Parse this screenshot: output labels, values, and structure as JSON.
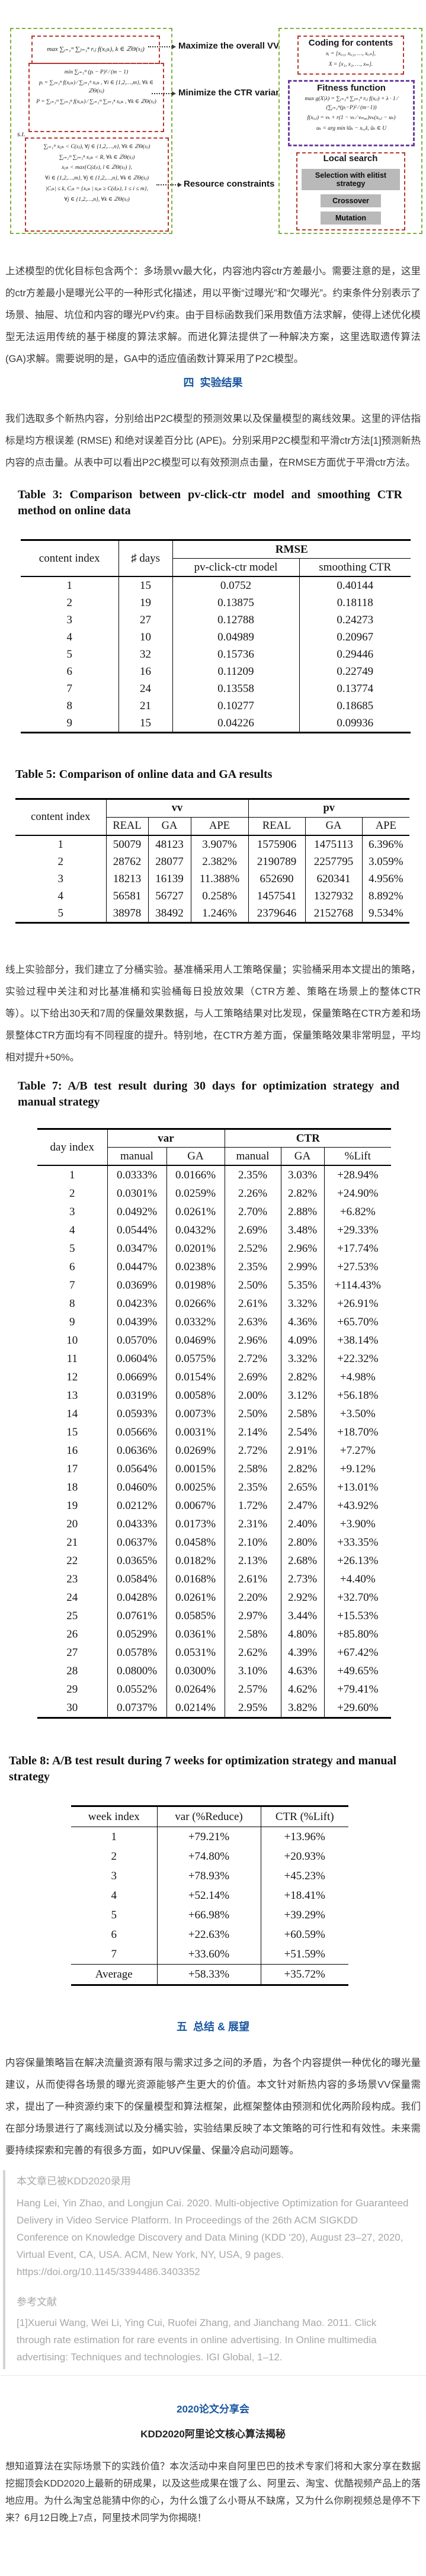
{
  "colors": {
    "heading_blue": "#1a57a0",
    "green_dash": "#7eb13e",
    "red_dash": "#b6372e",
    "purple_dash": "#6b3fa0",
    "button_gray": "#b9b9b9",
    "quote_gray": "#a8a8a8"
  },
  "figure": {
    "left": {
      "objective_max": "max ∑ᵢ₌₁ᵐ ∑ⱼ₌₁ⁿ rᵢⱼ f(xᵢⱼₖ), k ∈ ℤΘ(sⱼ)",
      "variance_lines": [
        "min  ∑ᵢ₌₁ᵐ (pᵢ − P)² ⁄ (m − 1)",
        "pᵢ = ∑ⱼ₌₁ⁿ f(xᵢⱼₖ) ⁄ ∑ⱼ₌₁ⁿ xᵢⱼₖ , ∀i ∈ {1,2,…,m}, ∀k ∈ ℤΘ(sⱼ)",
        "P = ∑ᵢ₌₁ᵐ ∑ⱼ₌₁ⁿ f(xᵢⱼₖ) ⁄ ∑ᵢ₌₁ᵐ ∑ⱼ₌₁ⁿ xᵢⱼₖ , ∀k ∈ ℤΘ(sⱼ)"
      ],
      "st": "s.t.",
      "constraint_lines": [
        "∑ᵢ₌₁ᵐ xᵢⱼₖ < C(sⱼ), ∀j ∈ {1,2,…,n}, ∀k ∈ ℤΘ(sⱼ)",
        "∑ᵢ₌₁ᵐ ∑ⱼ₌₁ⁿ xᵢⱼₖ < R, ∀k ∈ ℤΘ(sⱼ)",
        "xᵢⱼₖ < max{C(dⱼₗ), l ∈ ℤΘ(sⱼ) },",
        "∀i ∈ {1,2,…,m}, ∀j ∈ {1,2,…,n}, ∀k ∈ ℤΘ(sⱼ)",
        "|Cⱼₖ| ≤ k, Cⱼₖ = {xᵢⱼₖ | xᵢⱼₖ ≥ C(dⱼₖ), 1 ≤ i ≤ m},",
        "∀j ∈ {1,2,…,n}, ∀k ∈ ℤΘ(sⱼ)"
      ]
    },
    "labels": {
      "maximize": "Maximize the overall VVs",
      "minimize": "Minimize the CTR variance",
      "resource": "Resource constraints"
    },
    "right": {
      "coding_title": "Coding for contents",
      "coding_lines": [
        "xᵢ = [xᵢ,₁, xᵢ,₂, …, xᵢ,ₙ],",
        "X = [x₁, x₂, …, xₘ]."
      ],
      "fitness_title": "Fitness function",
      "fitness_lines": [
        "max g(X|λ) = ∑ᵢ₌₁ᵐ ∑ⱼ₌₁ⁿ rᵢⱼ f(xᵢⱼ) + λ · 1 ⁄ (∑ᵢ₌₁ᵐ(pᵢ−P)² ⁄ (m−1))",
        "f(xᵢ,ⱼ) = vₖ + r(1 − vₖ ⁄ vₘₐₓ)vₖ(xᵢ,ⱼ − uₖ)",
        "uₖ = arg min ‖ũₖ − xᵢ,ⱼ‖, ũₖ ∈ U"
      ],
      "local_title": "Local search",
      "local_buttons": [
        "Selection with elitist strategy",
        "Crossover",
        "Mutation"
      ]
    }
  },
  "headings": {
    "section4": "四  实验结果",
    "section5": "五  总结 & 展望",
    "share_title": "2020论文分享会",
    "share_subtitle": "KDD2020阿里论文核心算法揭秘"
  },
  "paragraphs": {
    "p1": "上述模型的优化目标包含两个：多场景vv最大化，内容池内容ctr方差最小。需要注意的是，这里的ctr方差最小是曝光公平的一种形式化描述，用以平衡“过曝光”和“欠曝光”。约束条件分别表示了场景、抽屉、坑位和内容的曝光PV约束。由于目标函数我们采用数值方法求解，使得上述优化模型无法运用传统的基于梯度的算法求解。而进化算法提供了一种解决方案，这里选取遗传算法(GA)求解。需要说明的是，GA中的适应值函数计算采用了P2C模型。",
    "p2": "我们选取多个新热内容，分别给出P2C模型的预测效果以及保量模型的离线效果。这里的评估指标是均方根误差 (RMSE) 和绝对误差百分比 (APE)。分别采用P2C模型和平滑ctr方法[1]预测新热内容的点击量。从表中可以看出P2C模型可以有效预测点击量，在RMSE方面优于平滑ctr方法。",
    "p3": "线上实验部分，我们建立了分桶实验。基准桶采用人工策略保量；实验桶采用本文提出的策略，实验过程中关注和对比基准桶和实验桶每日投放效果（CTR方差、策略在场景上的整体CTR等）。以下给出30天和7周的保量效果数据，与人工策略结果对比发现，保量策略在CTR方差和场景整体CTR方面均有不同程度的提升。特别地，在CTR方差方面，保量策略效果非常明显，平均相对提升+50%。",
    "p4": "内容保量策略旨在解决流量资源有限与需求过多之间的矛盾，为各个内容提供一种优化的曝光量建议，从而使得各场景的曝光资源能够产生更大的价值。本文针对新热内容的多场景VV保量需求，提出了一种资源约束下的保量模型和算法框架，此框架整体由预测和优化两阶段构成。我们在部分场景进行了离线测试以及分桶实验，实验结果反映了本文策略的可行性和有效性。未来需要持续探索和完善的有很多方面，如PUV保量、保量冷启动问题等。",
    "footer": "想知道算法在实际场景下的实践价值？本次活动中来自阿里巴巴的技术专家们将和大家分享在数据挖掘顶会KDD2020上最新的研成果，以及这些成果在饿了么、阿里云、淘宝、优酷视频产品上的落地应用。为什么淘宝总能猜中你的心，为什么饿了么小哥从不缺席，又为什么你刷视频总是停不下来？6月12日晚上7点，阿里技术同学为你揭晓！"
  },
  "tables": {
    "table3": {
      "caption": "Table 3: Comparison between pv-click-ctr model and smoothing CTR method on online data",
      "col1": "content index",
      "col2": "♯ days",
      "group": "RMSE",
      "sub1": "pv-click-ctr model",
      "sub2": "smoothing CTR",
      "rows": [
        [
          "1",
          "15",
          "0.0752",
          "0.40144"
        ],
        [
          "2",
          "19",
          "0.13875",
          "0.18118"
        ],
        [
          "3",
          "27",
          "0.12788",
          "0.24273"
        ],
        [
          "4",
          "10",
          "0.04989",
          "0.20967"
        ],
        [
          "5",
          "32",
          "0.15736",
          "0.29446"
        ],
        [
          "6",
          "16",
          "0.11209",
          "0.22749"
        ],
        [
          "7",
          "24",
          "0.13558",
          "0.13774"
        ],
        [
          "8",
          "21",
          "0.10277",
          "0.18685"
        ],
        [
          "9",
          "15",
          "0.04226",
          "0.09936"
        ]
      ]
    },
    "table5": {
      "caption": "Table 5: Comparison of online data and GA results",
      "col1": "content index",
      "group1": "vv",
      "group2": "pv",
      "subs": [
        "REAL",
        "GA",
        "APE",
        "REAL",
        "GA",
        "APE"
      ],
      "rows": [
        [
          "1",
          "50079",
          "48123",
          "3.907%",
          "1575906",
          "1475113",
          "6.396%"
        ],
        [
          "2",
          "28762",
          "28077",
          "2.382%",
          "2190789",
          "2257795",
          "3.059%"
        ],
        [
          "3",
          "18213",
          "16139",
          "11.388%",
          "652690",
          "620341",
          "4.956%"
        ],
        [
          "4",
          "56581",
          "56727",
          "0.258%",
          "1457541",
          "1327932",
          "8.892%"
        ],
        [
          "5",
          "38978",
          "38492",
          "1.246%",
          "2379646",
          "2152768",
          "9.534%"
        ]
      ]
    },
    "table7": {
      "caption": "Table 7: A/B test result during 30 days for optimization strategy and manual strategy",
      "col1": "day index",
      "group1": "var",
      "group2": "CTR",
      "subs": [
        "manual",
        "GA",
        "manual",
        "GA",
        "%Lift"
      ],
      "rows": [
        [
          "1",
          "0.0333%",
          "0.0166%",
          "2.35%",
          "3.03%",
          "+28.94%"
        ],
        [
          "2",
          "0.0301%",
          "0.0259%",
          "2.26%",
          "2.82%",
          "+24.90%"
        ],
        [
          "3",
          "0.0492%",
          "0.0261%",
          "2.70%",
          "2.88%",
          "+6.82%"
        ],
        [
          "4",
          "0.0544%",
          "0.0432%",
          "2.69%",
          "3.48%",
          "+29.33%"
        ],
        [
          "5",
          "0.0347%",
          "0.0201%",
          "2.52%",
          "2.96%",
          "+17.74%"
        ],
        [
          "6",
          "0.0447%",
          "0.0238%",
          "2.35%",
          "2.99%",
          "+27.53%"
        ],
        [
          "7",
          "0.0369%",
          "0.0198%",
          "2.50%",
          "5.35%",
          "+114.43%"
        ],
        [
          "8",
          "0.0423%",
          "0.0266%",
          "2.61%",
          "3.32%",
          "+26.91%"
        ],
        [
          "9",
          "0.0439%",
          "0.0332%",
          "2.63%",
          "4.36%",
          "+65.70%"
        ],
        [
          "10",
          "0.0570%",
          "0.0469%",
          "2.96%",
          "4.09%",
          "+38.14%"
        ],
        [
          "11",
          "0.0604%",
          "0.0575%",
          "2.72%",
          "3.32%",
          "+22.32%"
        ],
        [
          "12",
          "0.0669%",
          "0.0154%",
          "2.69%",
          "2.82%",
          "+4.98%"
        ],
        [
          "13",
          "0.0319%",
          "0.0058%",
          "2.00%",
          "3.12%",
          "+56.18%"
        ],
        [
          "14",
          "0.0593%",
          "0.0073%",
          "2.50%",
          "2.58%",
          "+3.50%"
        ],
        [
          "15",
          "0.0566%",
          "0.0031%",
          "2.14%",
          "2.54%",
          "+18.70%"
        ],
        [
          "16",
          "0.0636%",
          "0.0269%",
          "2.72%",
          "2.91%",
          "+7.27%"
        ],
        [
          "17",
          "0.0564%",
          "0.0015%",
          "2.58%",
          "2.82%",
          "+9.12%"
        ],
        [
          "18",
          "0.0460%",
          "0.0025%",
          "2.35%",
          "2.65%",
          "+13.01%"
        ],
        [
          "19",
          "0.0212%",
          "0.0067%",
          "1.72%",
          "2.47%",
          "+43.92%"
        ],
        [
          "20",
          "0.0433%",
          "0.0173%",
          "2.31%",
          "2.40%",
          "+3.90%"
        ],
        [
          "21",
          "0.0637%",
          "0.0458%",
          "2.10%",
          "2.80%",
          "+33.35%"
        ],
        [
          "22",
          "0.0365%",
          "0.0182%",
          "2.13%",
          "2.68%",
          "+26.13%"
        ],
        [
          "23",
          "0.0584%",
          "0.0168%",
          "2.61%",
          "2.73%",
          "+4.40%"
        ],
        [
          "24",
          "0.0428%",
          "0.0261%",
          "2.20%",
          "2.92%",
          "+32.70%"
        ],
        [
          "25",
          "0.0761%",
          "0.0585%",
          "2.97%",
          "3.44%",
          "+15.53%"
        ],
        [
          "26",
          "0.0529%",
          "0.0361%",
          "2.58%",
          "4.80%",
          "+85.80%"
        ],
        [
          "27",
          "0.0578%",
          "0.0531%",
          "2.62%",
          "4.39%",
          "+67.42%"
        ],
        [
          "28",
          "0.0800%",
          "0.0300%",
          "3.10%",
          "4.63%",
          "+49.65%"
        ],
        [
          "29",
          "0.0552%",
          "0.0264%",
          "2.57%",
          "4.62%",
          "+79.41%"
        ],
        [
          "30",
          "0.0737%",
          "0.0214%",
          "2.95%",
          "3.82%",
          "+29.60%"
        ]
      ]
    },
    "table8": {
      "caption": "Table 8: A/B test result during 7 weeks for optimization strategy and manual strategy",
      "headers": [
        "week index",
        "var (%Reduce)",
        "CTR (%Lift)"
      ],
      "rows": [
        [
          "1",
          "+79.21%",
          "+13.96%"
        ],
        [
          "2",
          "+74.80%",
          "+20.93%"
        ],
        [
          "3",
          "+78.93%",
          "+45.23%"
        ],
        [
          "4",
          "+52.14%",
          "+18.41%"
        ],
        [
          "5",
          "+66.98%",
          "+39.29%"
        ],
        [
          "6",
          "+22.63%",
          "+60.59%"
        ],
        [
          "7",
          "+33.60%",
          "+51.59%"
        ]
      ],
      "avg": [
        "Average",
        "+58.33%",
        "+35.72%"
      ]
    }
  },
  "blockquote": {
    "accepted": "本文章已被KDD2020录用",
    "citation_text": "Hang Lei, Yin Zhao, and Longjun Cai. 2020. Multi-objective Optimization for Guaranteed Delivery in Video Service Platform. In Proceedings of the 26th ACM SIGKDD Conference on Knowledge Discovery and Data Mining (KDD '20), August 23–27, 2020, Virtual Event, CA, USA. ACM, New York, NY, USA, 9 pages. ",
    "citation_url": "https://doi.org/10.1145/3394486.3403352",
    "ref_title": "参考文献",
    "ref1": "[1]Xuerui Wang, Wei Li, Ying Cui, Ruofei Zhang, and Jianchang Mao. 2011. Click through rate estimation for rare events in online advertising. In Online multimedia advertising: Techniques and technologies. IGI Global, 1–12."
  }
}
